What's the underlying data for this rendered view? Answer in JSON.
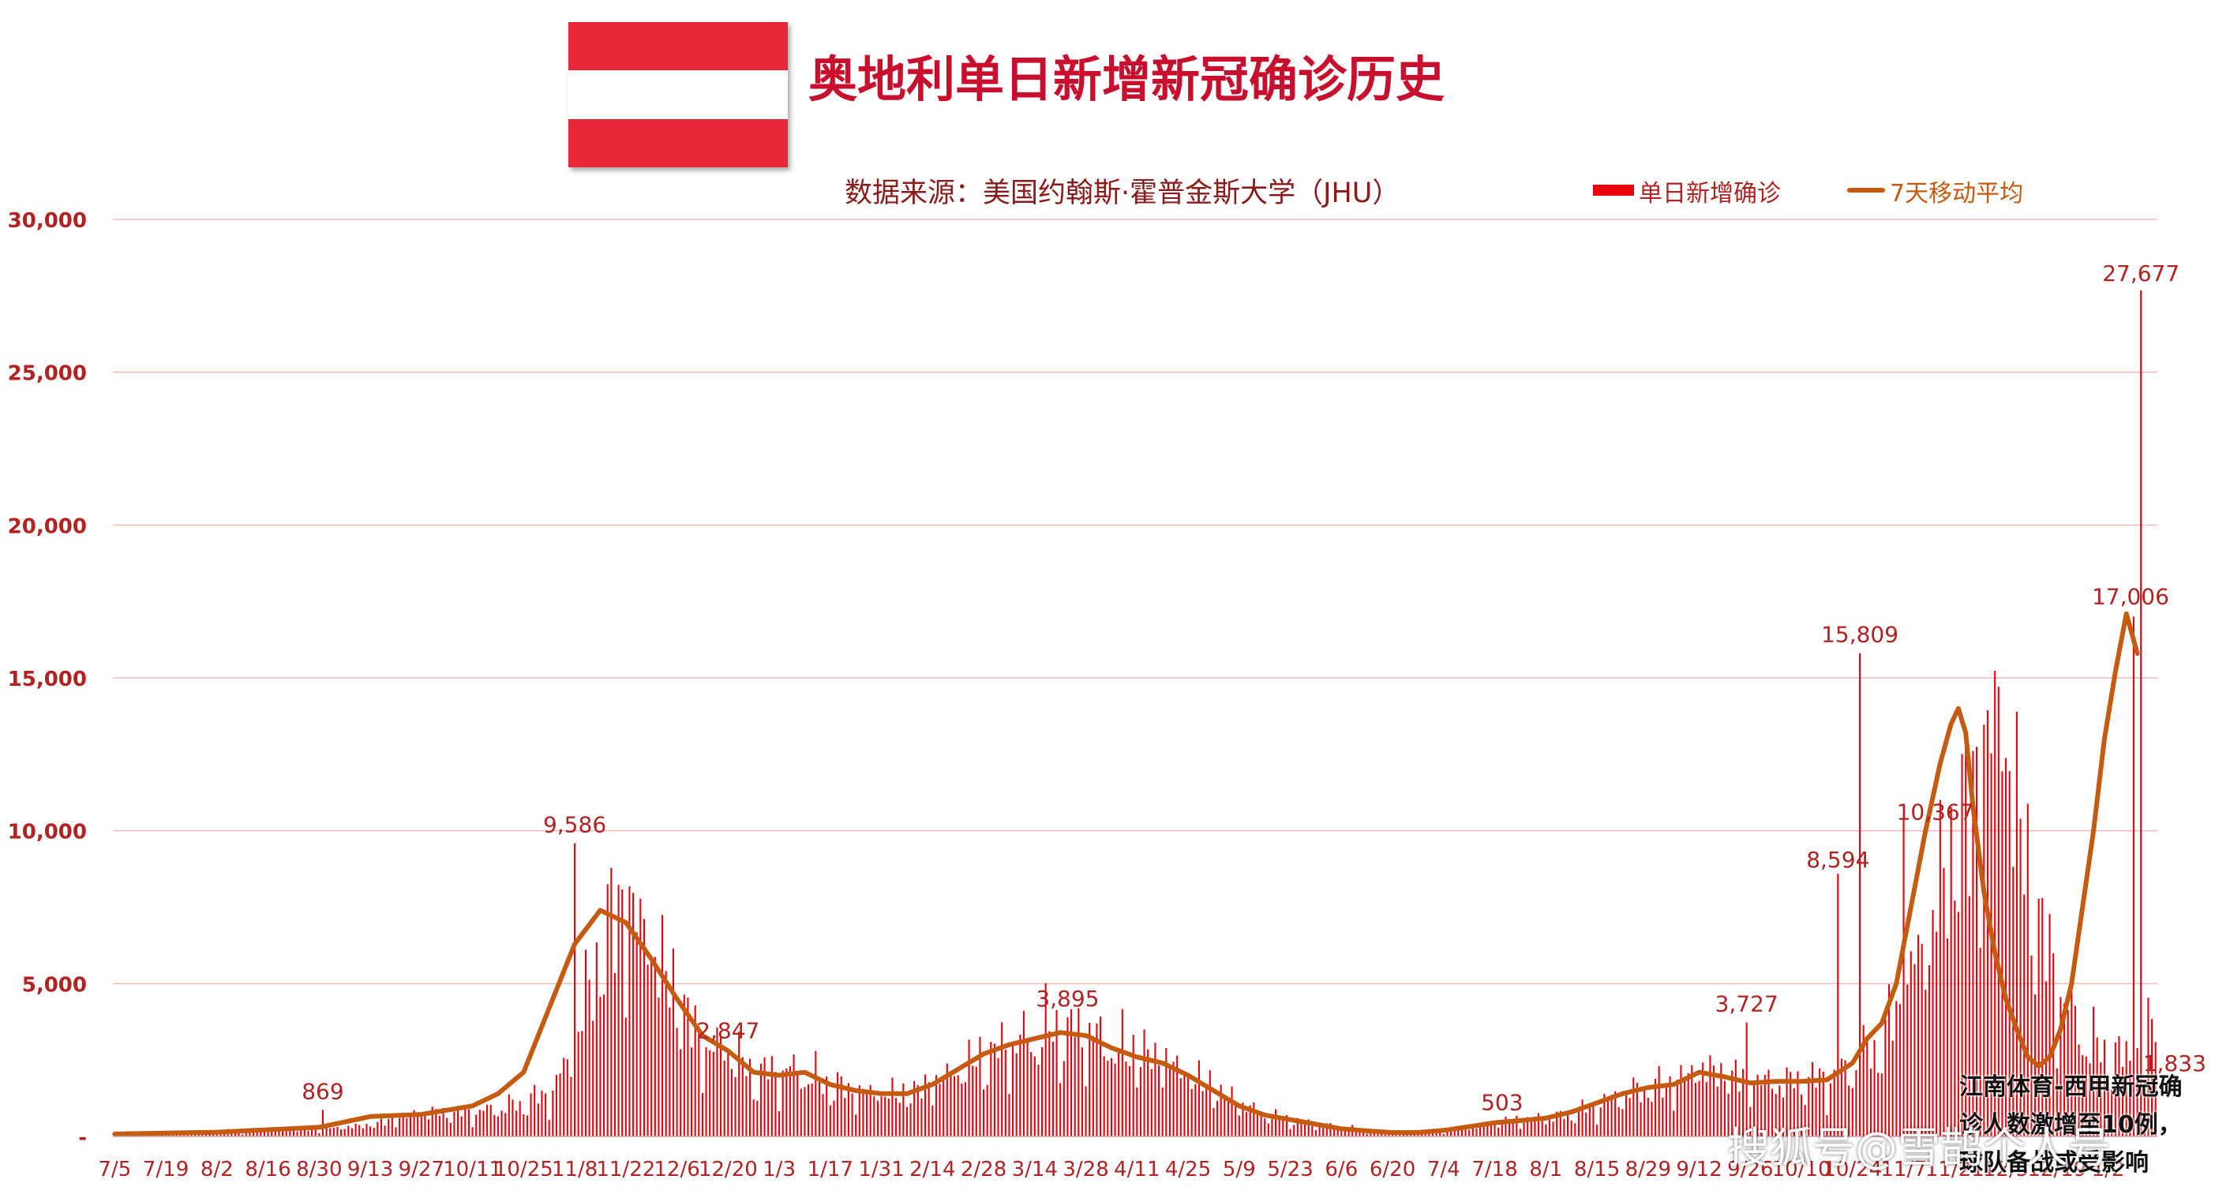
{
  "title": "奥地利单日新增新冠确诊历史",
  "source": "数据来源：美国约翰斯·霍普金斯大学（JHU）",
  "legend": {
    "bars": "单日新增确诊",
    "line": "7天移动平均"
  },
  "overlay_text": [
    "江南体育-西甲新冠确",
    "诊人数激增至10例，",
    "球队备战或受影响"
  ],
  "watermark": "搜狐号@雪鹊个人号",
  "colors": {
    "bar": "#e8000b",
    "line": "#c55a11",
    "axis_text": "#b22222",
    "title": "#c8102e",
    "flag_red": "#e8283a"
  },
  "chart_data": {
    "type": "bar",
    "title": "奥地利单日新增新冠确诊历史",
    "xlabel": "",
    "ylabel": "",
    "ylim": [
      0,
      30000
    ],
    "y_ticks": [
      {
        "value": 0,
        "label": "-"
      },
      {
        "value": 5000,
        "label": "5,000"
      },
      {
        "value": 10000,
        "label": "10,000"
      },
      {
        "value": 15000,
        "label": "15,000"
      },
      {
        "value": 20000,
        "label": "20,000"
      },
      {
        "value": 25000,
        "label": "25,000"
      },
      {
        "value": 30000,
        "label": "30,000"
      }
    ],
    "x_tick_labels": [
      "7/5",
      "7/19",
      "8/2",
      "8/16",
      "8/30",
      "9/13",
      "9/27",
      "10/11",
      "10/25",
      "11/8",
      "11/22",
      "12/6",
      "12/20",
      "1/3",
      "1/17",
      "1/31",
      "2/14",
      "2/28",
      "3/14",
      "3/28",
      "4/11",
      "4/25",
      "5/9",
      "5/23",
      "6/6",
      "6/20",
      "7/4",
      "7/18",
      "8/1",
      "8/15",
      "8/29",
      "9/12",
      "9/26",
      "10/10",
      "10/24",
      "11/7",
      "11/21",
      "12/5",
      "12/19",
      "1/2"
    ],
    "grid": true,
    "legend_position": "top-right",
    "series": [
      {
        "name": "单日新增确诊",
        "kind": "bar",
        "anchors": [
          [
            0,
            80
          ],
          [
            14,
            100
          ],
          [
            42,
            220
          ],
          [
            56,
            250
          ],
          [
            70,
            380
          ],
          [
            84,
            800
          ],
          [
            98,
            780
          ],
          [
            112,
            1100
          ],
          [
            120,
            1500
          ],
          [
            126,
            3000
          ],
          [
            130,
            5000
          ],
          [
            134,
            6500
          ],
          [
            137,
            7500
          ],
          [
            140,
            7700
          ],
          [
            144,
            7200
          ],
          [
            147,
            6500
          ],
          [
            154,
            4700
          ],
          [
            161,
            3000
          ],
          [
            168,
            2900
          ],
          [
            175,
            2000
          ],
          [
            182,
            2200
          ],
          [
            189,
            2100
          ],
          [
            196,
            1700
          ],
          [
            203,
            1500
          ],
          [
            217,
            1400
          ],
          [
            231,
            2200
          ],
          [
            245,
            3000
          ],
          [
            259,
            3600
          ],
          [
            266,
            3500
          ],
          [
            273,
            3000
          ],
          [
            287,
            2600
          ],
          [
            301,
            1600
          ],
          [
            315,
            700
          ],
          [
            329,
            400
          ],
          [
            343,
            200
          ],
          [
            357,
            120
          ],
          [
            364,
            150
          ],
          [
            371,
            300
          ],
          [
            378,
            450
          ],
          [
            385,
            550
          ],
          [
            399,
            700
          ],
          [
            413,
            1400
          ],
          [
            427,
            1800
          ],
          [
            434,
            2300
          ],
          [
            441,
            2100
          ],
          [
            455,
            1800
          ],
          [
            469,
            1900
          ],
          [
            476,
            2300
          ],
          [
            483,
            3100
          ],
          [
            490,
            4500
          ],
          [
            497,
            7000
          ],
          [
            504,
            10000
          ],
          [
            511,
            12000
          ],
          [
            514,
            14000
          ],
          [
            518,
            14000
          ],
          [
            521,
            11000
          ],
          [
            525,
            8000
          ],
          [
            532,
            5000
          ],
          [
            539,
            3400
          ],
          [
            546,
            2600
          ],
          [
            553,
            2600
          ],
          [
            560,
            4500
          ],
          [
            564,
            8000
          ],
          [
            567,
            12000
          ],
          [
            570,
            16500
          ],
          [
            573,
            17000
          ],
          [
            575,
            11000
          ]
        ],
        "peaks": [
          [
            57,
            869
          ],
          [
            126,
            9586
          ],
          [
            168,
            2847
          ],
          [
            261,
            3895
          ],
          [
            380,
            503
          ],
          [
            447,
            3727
          ],
          [
            472,
            8594
          ],
          [
            478,
            15809
          ],
          [
            490,
            10367
          ],
          [
            553,
            17006
          ],
          [
            555,
            27677
          ],
          [
            556,
            1833
          ]
        ]
      },
      {
        "name": "7天移动平均",
        "kind": "line",
        "points": [
          [
            0,
            80
          ],
          [
            14,
            110
          ],
          [
            28,
            140
          ],
          [
            42,
            220
          ],
          [
            56,
            300
          ],
          [
            70,
            650
          ],
          [
            84,
            720
          ],
          [
            98,
            1000
          ],
          [
            105,
            1400
          ],
          [
            112,
            2100
          ],
          [
            119,
            4200
          ],
          [
            126,
            6300
          ],
          [
            133,
            7400
          ],
          [
            140,
            7000
          ],
          [
            147,
            5800
          ],
          [
            154,
            4500
          ],
          [
            161,
            3300
          ],
          [
            168,
            2800
          ],
          [
            175,
            2100
          ],
          [
            182,
            2000
          ],
          [
            189,
            2100
          ],
          [
            196,
            1700
          ],
          [
            203,
            1500
          ],
          [
            210,
            1400
          ],
          [
            217,
            1400
          ],
          [
            224,
            1700
          ],
          [
            231,
            2200
          ],
          [
            238,
            2700
          ],
          [
            245,
            3000
          ],
          [
            252,
            3200
          ],
          [
            259,
            3400
          ],
          [
            266,
            3300
          ],
          [
            273,
            2900
          ],
          [
            280,
            2600
          ],
          [
            287,
            2400
          ],
          [
            294,
            2000
          ],
          [
            301,
            1500
          ],
          [
            308,
            1000
          ],
          [
            315,
            700
          ],
          [
            322,
            550
          ],
          [
            329,
            400
          ],
          [
            336,
            250
          ],
          [
            343,
            180
          ],
          [
            350,
            130
          ],
          [
            357,
            130
          ],
          [
            364,
            200
          ],
          [
            371,
            320
          ],
          [
            378,
            450
          ],
          [
            385,
            520
          ],
          [
            392,
            600
          ],
          [
            399,
            800
          ],
          [
            406,
            1100
          ],
          [
            413,
            1400
          ],
          [
            420,
            1600
          ],
          [
            427,
            1700
          ],
          [
            434,
            2100
          ],
          [
            441,
            1950
          ],
          [
            448,
            1750
          ],
          [
            455,
            1800
          ],
          [
            462,
            1800
          ],
          [
            469,
            1850
          ],
          [
            476,
            2400
          ],
          [
            480,
            3200
          ],
          [
            484,
            3700
          ],
          [
            488,
            5000
          ],
          [
            492,
            7500
          ],
          [
            496,
            10000
          ],
          [
            500,
            12200
          ],
          [
            503,
            13500
          ],
          [
            505,
            14000
          ],
          [
            507,
            13200
          ],
          [
            509,
            10800
          ],
          [
            512,
            8000
          ],
          [
            515,
            6000
          ],
          [
            518,
            4500
          ],
          [
            521,
            3500
          ],
          [
            524,
            2600
          ],
          [
            527,
            2300
          ],
          [
            530,
            2600
          ],
          [
            533,
            3500
          ],
          [
            536,
            5000
          ],
          [
            539,
            7500
          ],
          [
            542,
            10000
          ],
          [
            545,
            13000
          ],
          [
            548,
            15200
          ],
          [
            551,
            17100
          ],
          [
            554,
            15800
          ]
        ]
      }
    ],
    "data_labels": [
      {
        "text": "869",
        "x": 57,
        "y": 869
      },
      {
        "text": "9,586",
        "x": 126,
        "y": 9586
      },
      {
        "text": "2,847",
        "x": 168,
        "y": 2847
      },
      {
        "text": "3,895",
        "x": 261,
        "y": 3895
      },
      {
        "text": "503",
        "x": 380,
        "y": 503
      },
      {
        "text": "3,727",
        "x": 447,
        "y": 3727
      },
      {
        "text": "8,594",
        "x": 472,
        "y": 8594
      },
      {
        "text": "15,809",
        "x": 478,
        "y": 15809
      },
      {
        "text": "10,367",
        "x": 490,
        "y": 10367
      },
      {
        "text": "17,006",
        "x": 553,
        "y": 17006
      },
      {
        "text": "27,677",
        "x": 555,
        "y": 27677
      },
      {
        "text": "1,833",
        "x": 556,
        "y": 1833
      }
    ]
  }
}
